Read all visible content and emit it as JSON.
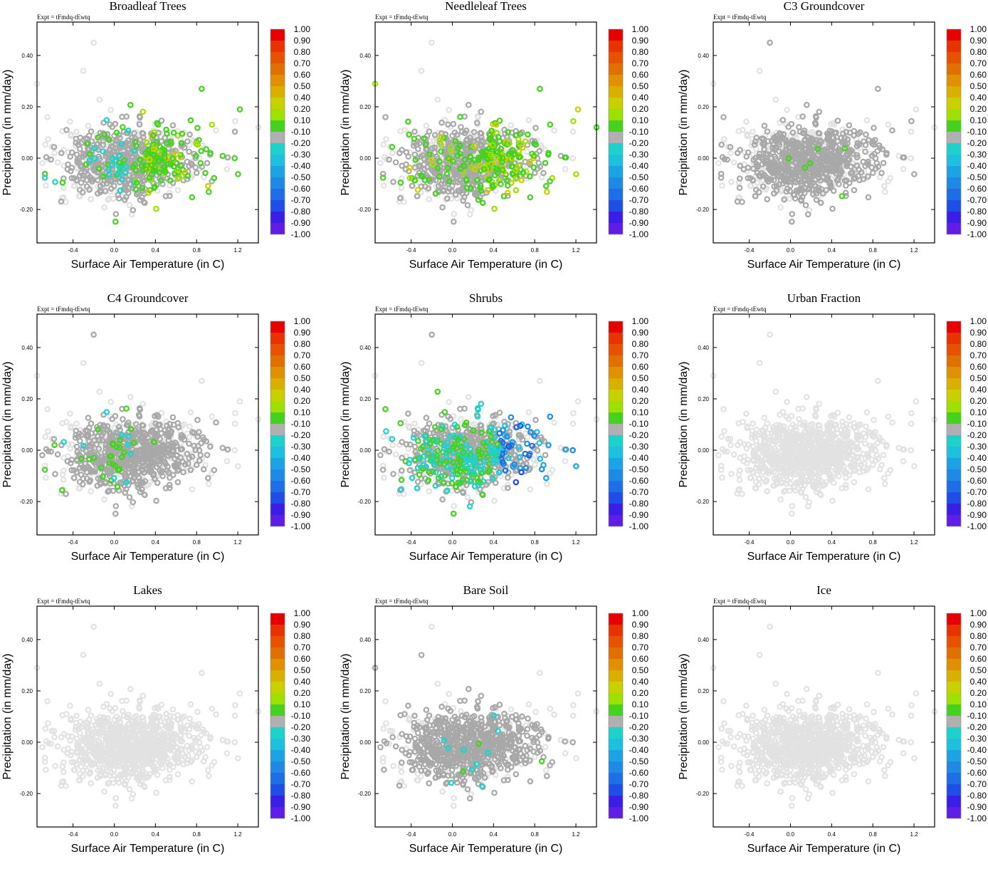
{
  "figure": {
    "expt_label": "Expt = tFmdq-tEwtq",
    "xlabel": "Surface Air Temperature (in C)",
    "ylabel": "Precipitation (in mm/day)",
    "xticks": [
      -0.4,
      0.0,
      0.4,
      0.8,
      1.2
    ],
    "xtick_labels": [
      "-0.4",
      "0.0",
      "0.4",
      "0.8",
      "1.2"
    ],
    "yticks": [
      -0.2,
      0.0,
      0.2,
      0.4
    ],
    "ytick_labels": [
      "-0.20",
      "0.00",
      "0.20",
      "0.40"
    ],
    "xlim": [
      -0.75,
      1.4
    ],
    "ylim": [
      -0.33,
      0.53
    ],
    "colorbar": {
      "labels": [
        "1.00",
        "0.90",
        "0.80",
        "0.70",
        "0.60",
        "0.50",
        "0.40",
        "0.20",
        "0.10",
        "-0.10",
        "-0.20",
        "-0.30",
        "-0.40",
        "-0.50",
        "-0.60",
        "-0.70",
        "-0.80",
        "-0.90",
        "-1.00"
      ],
      "colors": [
        "#e60000",
        "#e63300",
        "#e65200",
        "#e07000",
        "#e09000",
        "#d9b000",
        "#c8d000",
        "#9ee000",
        "#44d21e",
        "#b0b0b0",
        "#1ed2cc",
        "#1ec0e0",
        "#1ea2e6",
        "#1e8ae6",
        "#1e6ee6",
        "#1e4ee6",
        "#3a1ee6",
        "#5e1ee6",
        "#8a1ee6"
      ]
    },
    "neutral_light": "#e2e2e2",
    "neutral_dark": "#a8a8a8"
  },
  "chart_data": [
    {
      "type": "scatter",
      "title": "Broadleaf Trees",
      "pattern": "warm_trees",
      "dark_share": 0.45,
      "color_share": 0.2
    },
    {
      "type": "scatter",
      "title": "Needleleaf Trees",
      "pattern": "warm_trees2",
      "dark_share": 0.45,
      "color_share": 0.28
    },
    {
      "type": "scatter",
      "title": "C3 Groundcover",
      "pattern": "groundcover",
      "dark_share": 0.55,
      "color_share": 0.01
    },
    {
      "type": "scatter",
      "title": "C4 Groundcover",
      "pattern": "c4",
      "dark_share": 0.55,
      "color_share": 0.04
    },
    {
      "type": "scatter",
      "title": "Shrubs",
      "pattern": "shrubs",
      "dark_share": 0.55,
      "color_share": 0.2
    },
    {
      "type": "scatter",
      "title": "Urban Fraction",
      "pattern": "none",
      "dark_share": 0.0,
      "color_share": 0.0
    },
    {
      "type": "scatter",
      "title": "Lakes",
      "pattern": "none",
      "dark_share": 0.0,
      "color_share": 0.0
    },
    {
      "type": "scatter",
      "title": "Bare Soil",
      "pattern": "bare",
      "dark_share": 0.6,
      "color_share": 0.01
    },
    {
      "type": "scatter",
      "title": "Ice",
      "pattern": "none",
      "dark_share": 0.0,
      "color_share": 0.0
    }
  ]
}
